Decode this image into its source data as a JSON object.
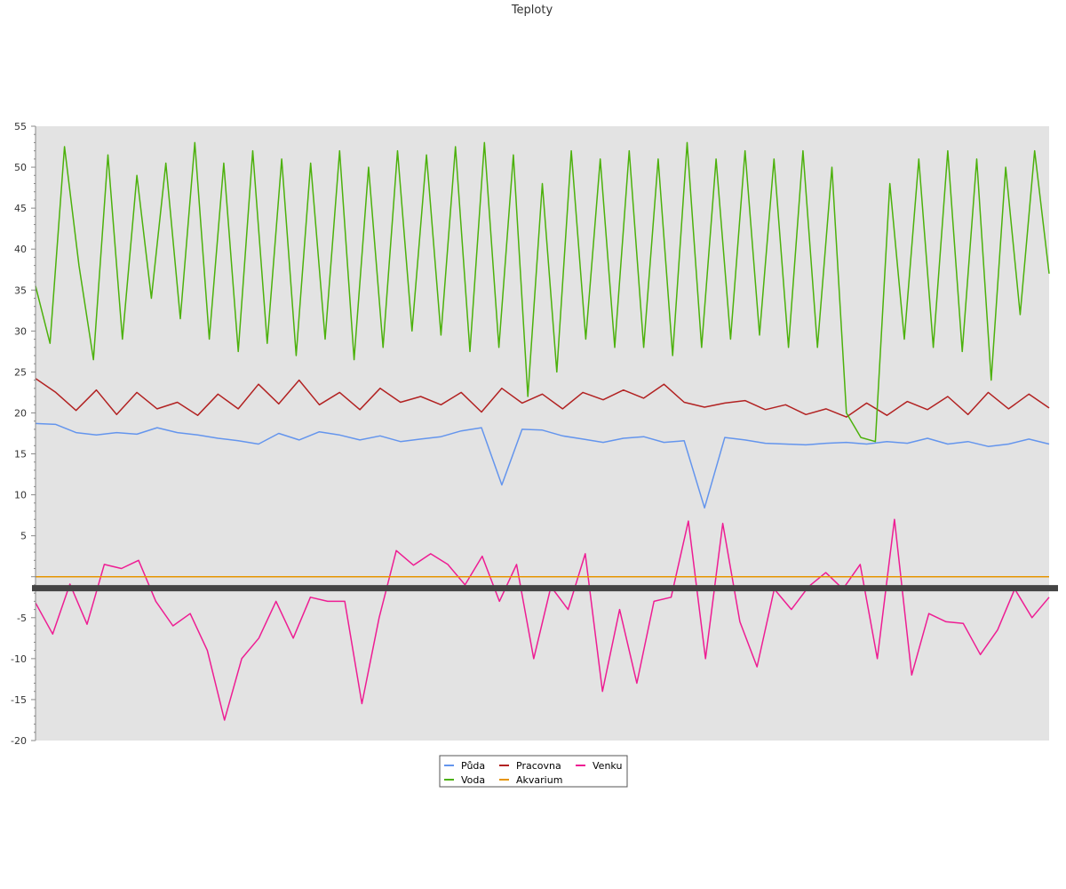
{
  "chart_data": {
    "type": "line",
    "title": "Teploty",
    "xlabel": "",
    "ylabel": "",
    "ylim": [
      -20,
      55
    ],
    "y_ticks": [
      55,
      50,
      45,
      40,
      35,
      30,
      25,
      20,
      15,
      10,
      5,
      -5,
      -10,
      -15,
      -20
    ],
    "x_axis_labels": "none",
    "grid": false,
    "legend": "bottom-center",
    "reference_line": {
      "y": -1.4
    },
    "series": [
      {
        "name": "Půda",
        "color": "#6495ed",
        "values": [
          18.7,
          18.6,
          17.6,
          17.3,
          17.6,
          17.4,
          18.2,
          17.6,
          17.3,
          16.9,
          16.6,
          16.2,
          17.5,
          16.7,
          17.7,
          17.3,
          16.7,
          17.2,
          16.5,
          16.8,
          17.1,
          17.8,
          18.2,
          11.2,
          18.0,
          17.9,
          17.2,
          16.8,
          16.4,
          16.9,
          17.1,
          16.4,
          16.6,
          8.4,
          17.0,
          16.7,
          16.3,
          16.2,
          16.1,
          16.3,
          16.4,
          16.2,
          16.5,
          16.3,
          16.9,
          16.2,
          16.5,
          15.9,
          16.2,
          16.8,
          16.2
        ]
      },
      {
        "name": "Voda",
        "color": "#4cb10c",
        "values": [
          35.5,
          28.5,
          52.5,
          38,
          26.5,
          51.5,
          29,
          49,
          34,
          50.5,
          31.5,
          53,
          29,
          50.5,
          27.5,
          52,
          28.5,
          51,
          27,
          50.5,
          29,
          52,
          26.5,
          50,
          28,
          52,
          30,
          51.5,
          29.5,
          52.5,
          27.5,
          53,
          28,
          51.5,
          22,
          48,
          25,
          52,
          29,
          51,
          28,
          52,
          28,
          51,
          27,
          53,
          28,
          51,
          29,
          52,
          29.5,
          51,
          28,
          52,
          28,
          50,
          20,
          17,
          16.5,
          48,
          29,
          51,
          28,
          52,
          27.5,
          51,
          24,
          50,
          32,
          52,
          37
        ]
      },
      {
        "name": "Pracovna",
        "color": "#b22222",
        "values": [
          24.2,
          22.5,
          20.3,
          22.8,
          19.8,
          22.5,
          20.5,
          21.3,
          19.7,
          22.3,
          20.5,
          23.5,
          21.1,
          24.0,
          21.0,
          22.5,
          20.4,
          23.0,
          21.3,
          22.0,
          21.0,
          22.5,
          20.1,
          23.0,
          21.2,
          22.3,
          20.5,
          22.5,
          21.6,
          22.8,
          21.8,
          23.5,
          21.3,
          20.7,
          21.2,
          21.5,
          20.4,
          21.0,
          19.8,
          20.5,
          19.5,
          21.2,
          19.7,
          21.4,
          20.4,
          22.0,
          19.8,
          22.5,
          20.5,
          22.3,
          20.6
        ]
      },
      {
        "name": "Akvarium",
        "color": "#e69500",
        "values": [
          0,
          0
        ]
      },
      {
        "name": "Venku",
        "color": "#ee1d93",
        "values": [
          -3.2,
          -7,
          -0.9,
          -5.8,
          1.5,
          1,
          2,
          -3,
          -6,
          -4.5,
          -9,
          -17.5,
          -10,
          -7.5,
          -3,
          -7.5,
          -2.5,
          -3,
          -3,
          -15.5,
          -5,
          3.2,
          1.4,
          2.8,
          1.5,
          -1,
          2.5,
          -3,
          1.5,
          -10,
          -1.2,
          -4,
          2.8,
          -14,
          -4,
          -13,
          -3,
          -2.5,
          6.8,
          -10,
          6.5,
          -5.5,
          -11,
          -1.5,
          -4,
          -1.2,
          0.5,
          -1.5,
          1.5,
          -10,
          7,
          -12,
          -4.5,
          -5.5,
          -5.7,
          -9.5,
          -6.5,
          -1.5,
          -5,
          -2.5
        ]
      }
    ]
  }
}
